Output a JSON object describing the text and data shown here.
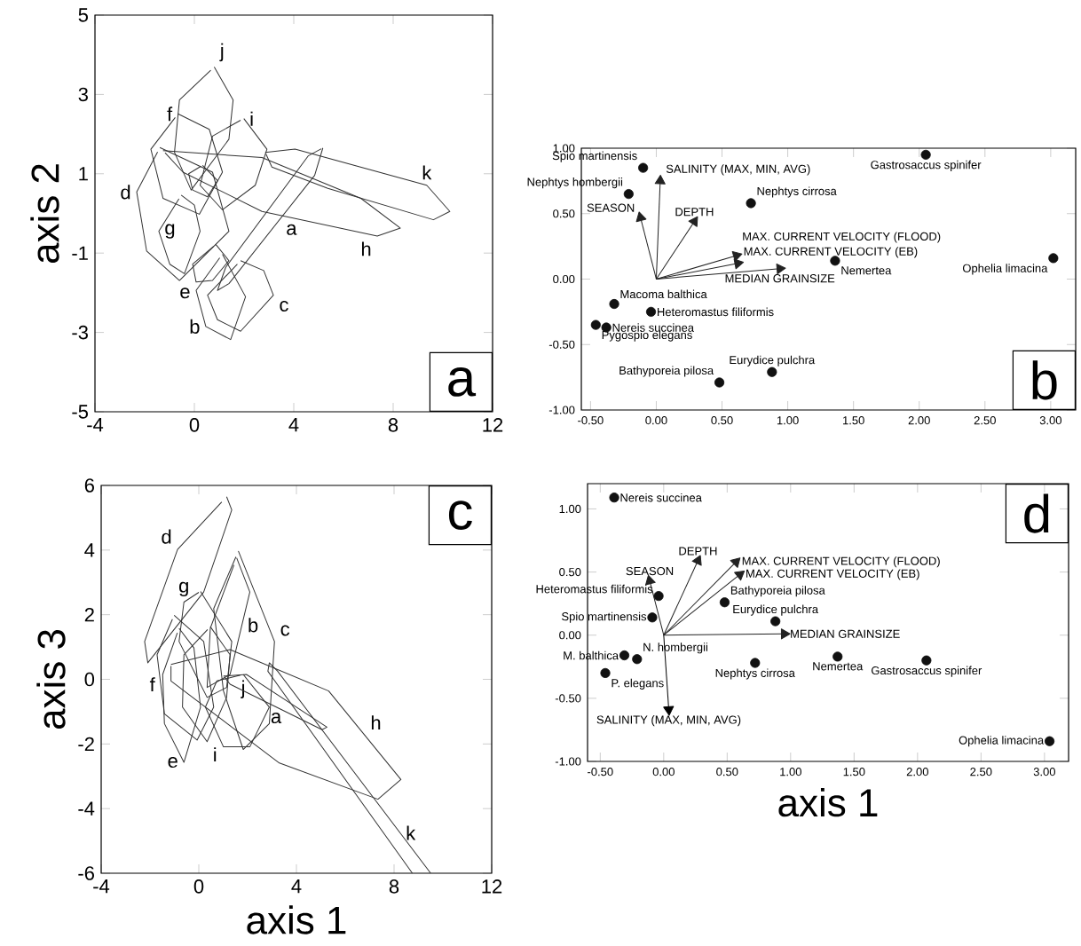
{
  "chart_data": [
    {
      "type": "line",
      "ylabel": "axis 2",
      "xlim": [
        -4,
        12
      ],
      "ylim": [
        -5,
        5
      ],
      "xticks": [
        -4,
        0,
        4,
        8,
        12
      ],
      "yticks": [
        -5,
        -3,
        -1,
        1,
        3,
        5
      ],
      "series": [
        {
          "name": "j",
          "color": "#333333",
          "x": [
            0.8,
            1.56,
            1.39,
            -0.13,
            -0.8,
            -0.6,
            0.66
          ],
          "values": [
            3.69,
            2.86,
            1.87,
            0.59,
            1.54,
            2.86,
            3.61
          ]
        },
        {
          "name": "f",
          "color": "#333333",
          "x": [
            -0.66,
            0.6,
            1.13,
            0.2,
            -1.26,
            -1.75,
            -0.77
          ],
          "values": [
            2.51,
            2.12,
            1.04,
            -0.02,
            0.38,
            1.62,
            2.42
          ]
        },
        {
          "name": "i",
          "color": "#333333",
          "x": [
            1.99,
            2.92,
            2.45,
            1.13,
            0.23,
            0.73,
            1.86
          ],
          "values": [
            2.39,
            1.62,
            0.71,
            0.09,
            0.71,
            1.95,
            2.35
          ]
        },
        {
          "color": "#333333",
          "x": [
            0.33,
            0.93,
            0.53,
            -0.07,
            -0.23,
            0.27
          ],
          "values": [
            1.21,
            0.83,
            0.42,
            0.59,
            1.0,
            1.19
          ]
        },
        {
          "name": "d",
          "color": "#333333",
          "x": [
            -1.39,
            0.73,
            1.39,
            -0.6,
            -1.92,
            -2.32,
            -1.48
          ],
          "values": [
            1.66,
            1.04,
            -0.45,
            -1.69,
            -0.95,
            0.54,
            1.55
          ]
        },
        {
          "name": "g",
          "color": "#333333",
          "x": [
            -0.53,
            0.0,
            0.23,
            -0.4,
            -0.99,
            -1.43,
            -0.62
          ],
          "values": [
            0.46,
            0.21,
            -0.45,
            -1.52,
            -1.28,
            -0.45,
            0.37
          ]
        },
        {
          "name": "e",
          "color": "#333333",
          "x": [
            0.86,
            1.39,
            0.73,
            0.07,
            -0.07,
            0.77
          ],
          "values": [
            -0.78,
            -1.19,
            -1.69,
            -1.73,
            -1.28,
            -0.83
          ]
        },
        {
          "name": "b",
          "color": "#333333",
          "x": [
            1.13,
            2.06,
            1.46,
            0.46,
            0.07,
            1.02
          ],
          "values": [
            -1.03,
            -2.1,
            -3.18,
            -2.85,
            -1.94,
            -1.12
          ]
        },
        {
          "name": "c",
          "color": "#333333",
          "x": [
            1.86,
            2.79,
            3.18,
            1.86,
            0.93,
            0.53,
            1.73
          ],
          "values": [
            -1.19,
            -1.44,
            -2.06,
            -2.97,
            -2.68,
            -2.06,
            -1.28
          ]
        },
        {
          "name": "a",
          "color": "#333333",
          "x": [
            5.17,
            4.84,
            1.39,
            0.93,
            1.26,
            4.58,
            5.11
          ],
          "values": [
            1.65,
            0.96,
            -1.77,
            -1.94,
            -1.36,
            1.45,
            1.63
          ]
        },
        {
          "name": "h",
          "color": "#333333",
          "x": [
            -1.26,
            2.72,
            6.7,
            8.29,
            7.36,
            2.72,
            -0.46,
            -1.18
          ],
          "values": [
            1.58,
            1.41,
            0.38,
            -0.37,
            -0.57,
            0.05,
            1.04,
            1.53
          ]
        },
        {
          "name": "k",
          "color": "#333333",
          "x": [
            2.85,
            4.05,
            9.35,
            10.28,
            9.62,
            5.37,
            3.12,
            2.88
          ],
          "values": [
            1.54,
            1.62,
            0.71,
            0.05,
            -0.16,
            0.63,
            1.17,
            1.5
          ]
        }
      ],
      "annotations": [
        "a"
      ]
    },
    {
      "type": "scatter",
      "xlim": [
        -0.57,
        3.19
      ],
      "ylim": [
        -1,
        1
      ],
      "xticks": [
        {
          "value": -0.5,
          "label": "-0.50"
        },
        {
          "value": 0,
          "label": "0.00"
        },
        {
          "value": 0.5,
          "label": "0.50"
        },
        {
          "value": 1,
          "label": "1.00"
        },
        {
          "value": 1.5,
          "label": "1.50"
        },
        {
          "value": 2,
          "label": "2.00"
        },
        {
          "value": 2.5,
          "label": "2.50"
        },
        {
          "value": 3,
          "label": "3.00"
        }
      ],
      "yticks": [
        {
          "value": -1,
          "label": "-1.00"
        },
        {
          "value": -0.5,
          "label": "-0.50"
        },
        {
          "value": 0,
          "label": "0.00"
        },
        {
          "value": 0.5,
          "label": "0.50"
        },
        {
          "value": 1,
          "label": "1.00"
        }
      ],
      "series": [
        {
          "type": "scatter",
          "marker": "circle",
          "color": "#111111",
          "x": [
            -0.1,
            -0.21,
            0.72,
            2.05,
            3.02,
            1.36,
            -0.32,
            -0.04,
            -0.46,
            -0.38,
            0.48,
            0.88
          ],
          "values": [
            0.85,
            0.65,
            0.58,
            0.95,
            0.16,
            0.14,
            -0.19,
            -0.25,
            -0.35,
            -0.37,
            -0.79,
            -0.71
          ]
        },
        {
          "type": "line",
          "marker": "triangle",
          "color": "#222222",
          "x": [
            0,
            0.03
          ],
          "values": [
            0,
            0.75
          ]
        },
        {
          "type": "line",
          "marker": "triangle",
          "color": "#222222",
          "x": [
            0,
            -0.12
          ],
          "values": [
            0,
            0.47
          ]
        },
        {
          "type": "line",
          "marker": "triangle",
          "color": "#222222",
          "x": [
            0,
            0.29
          ],
          "values": [
            0,
            0.44
          ]
        },
        {
          "type": "line",
          "marker": "triangle",
          "color": "#222222",
          "x": [
            0,
            0.61
          ],
          "values": [
            0,
            0.18
          ]
        },
        {
          "type": "line",
          "marker": "triangle",
          "color": "#222222",
          "x": [
            0,
            0.62
          ],
          "values": [
            0,
            0.12
          ]
        },
        {
          "type": "line",
          "marker": "triangle",
          "color": "#222222",
          "x": [
            0,
            0.94
          ],
          "values": [
            0,
            0.08
          ]
        }
      ],
      "annotations": [
        {
          "text": "Spio martinensis",
          "x": -0.1,
          "y": 0.85
        },
        {
          "text": "Nephtys hombergii",
          "x": -0.21,
          "y": 0.65
        },
        {
          "text": "SALINITY (MAX, MIN, AVG)",
          "x": 0.03,
          "y": 0.75
        },
        {
          "text": "SEASON",
          "x": -0.12,
          "y": 0.47
        },
        {
          "text": "DEPTH",
          "x": 0.29,
          "y": 0.44
        },
        {
          "text": "Nephtys cirrosa",
          "x": 0.72,
          "y": 0.58
        },
        {
          "text": "Gastrosaccus spinifer",
          "x": 2.05,
          "y": 0.95
        },
        {
          "text": "MAX. CURRENT VELOCITY (FLOOD)",
          "x": 0.61,
          "y": 0.18
        },
        {
          "text": "MAX. CURRENT VELOCITY (EB)",
          "x": 0.62,
          "y": 0.12
        },
        {
          "text": "Nemertea",
          "x": 1.36,
          "y": 0.14
        },
        {
          "text": "Ophelia limacina",
          "x": 3.02,
          "y": 0.16
        },
        {
          "text": "MEDIAN GRAINSIZE",
          "x": 0.94,
          "y": 0.08
        },
        {
          "text": "Macoma balthica",
          "x": -0.32,
          "y": -0.19
        },
        {
          "text": "Heteromastus filiformis",
          "x": -0.04,
          "y": -0.25
        },
        {
          "text": "Nereis succinea",
          "x": -0.38,
          "y": -0.37
        },
        {
          "text": "Pygospio elegans",
          "x": -0.46,
          "y": -0.35
        },
        {
          "text": "Eurydice pulchra",
          "x": 0.88,
          "y": -0.71
        },
        {
          "text": "Bathyporeia pilosa",
          "x": 0.48,
          "y": -0.79
        },
        "b"
      ]
    },
    {
      "type": "line",
      "xlabel": "axis 1",
      "ylabel": "axis 3",
      "xlim": [
        -4,
        12
      ],
      "ylim": [
        -6,
        6
      ],
      "xticks": [
        -4,
        0,
        4,
        8,
        12
      ],
      "yticks": [
        -6,
        -4,
        -2,
        0,
        2,
        4,
        6
      ],
      "series": [
        {
          "name": "d",
          "color": "#333333",
          "x": [
            1.14,
            1.35,
            0.2,
            -2.09,
            -2.22,
            -0.87,
            0.94
          ],
          "values": [
            5.65,
            5.24,
            2.7,
            0.51,
            1.17,
            4.02,
            5.49
          ]
        },
        {
          "name": "c",
          "color": "#333333",
          "x": [
            1.62,
            3.1,
            2.89,
            1.82,
            1.01,
            0.61,
            1.52
          ],
          "values": [
            3.97,
            1.17,
            -1.37,
            -2.17,
            -0.36,
            2.19,
            3.79
          ]
        },
        {
          "name": "b",
          "color": "#333333",
          "x": [
            1.55,
            2.09,
            1.28,
            0.34,
            0.47,
            1.44
          ],
          "values": [
            3.76,
            2.7,
            0.15,
            -0.25,
            1.58,
            3.54
          ]
        },
        {
          "name": "g",
          "color": "#333333",
          "x": [
            0.07,
            1.35,
            1.14,
            0.34,
            -0.81,
            -0.61,
            0.0
          ],
          "values": [
            2.72,
            1.17,
            -0.25,
            -0.56,
            1.17,
            2.39,
            2.69
          ]
        },
        {
          "name": "f",
          "color": "#333333",
          "x": [
            -1.01,
            0.2,
            0.61,
            -0.07,
            -1.41,
            -1.71,
            -1.08
          ],
          "values": [
            1.98,
            1.17,
            -0.86,
            -1.88,
            -1.07,
            0.76,
            1.86
          ]
        },
        {
          "name": "e",
          "color": "#333333",
          "x": [
            -0.81,
            -0.2,
            0.07,
            -0.61,
            -1.41,
            -1.48,
            -0.88
          ],
          "values": [
            1.58,
            0.97,
            -0.86,
            -2.57,
            -1.37,
            0.15,
            1.44
          ]
        },
        {
          "name": "i",
          "color": "#333333",
          "x": [
            0.47,
            1.28,
            1.14,
            0.34,
            -0.67,
            -0.61,
            0.36
          ],
          "values": [
            1.63,
            0.76,
            -0.56,
            -1.93,
            -0.86,
            0.76,
            1.54
          ]
        },
        {
          "name": "j",
          "color": "#333333",
          "x": [
            1.82,
            2.89,
            2.09,
            1.01,
            0.27,
            0.74,
            1.71
          ],
          "values": [
            0.15,
            -0.86,
            -2.09,
            -2.09,
            -0.86,
            -0.05,
            0.13
          ]
        },
        {
          "name": "h",
          "color": "#333333",
          "x": [
            -1.14,
            1.28,
            5.32,
            8.28,
            7.34,
            3.3,
            -1.14,
            -1.14
          ],
          "values": [
            0.46,
            0.92,
            -0.36,
            -3.1,
            -3.71,
            -2.59,
            -0.05,
            0.41
          ]
        },
        {
          "name": "a",
          "color": "#333333",
          "x": [
            1.01,
            1.95,
            5.25,
            5.05,
            1.28,
            1.04
          ],
          "values": [
            0.1,
            0.15,
            -1.48,
            -1.56,
            -0.15,
            0.08
          ]
        },
        {
          "name": "k",
          "color": "#333333",
          "x": [
            8.75,
            2.83,
            2.89,
            3.23,
            9.5
          ],
          "values": [
            -6,
            0.25,
            0.51,
            0.25,
            -6
          ]
        }
      ],
      "annotations": [
        "c"
      ]
    },
    {
      "type": "scatter",
      "xlabel": "axis 1",
      "xlim": [
        -0.6,
        3.19
      ],
      "ylim": [
        -1,
        1.2
      ],
      "xticks": [
        {
          "value": -0.5,
          "label": "-0.50"
        },
        {
          "value": 0,
          "label": "0.00"
        },
        {
          "value": 0.5,
          "label": "0.50"
        },
        {
          "value": 1,
          "label": "1.00"
        },
        {
          "value": 1.5,
          "label": "1.50"
        },
        {
          "value": 2,
          "label": "2.00"
        },
        {
          "value": 2.5,
          "label": "2.50"
        },
        {
          "value": 3,
          "label": "3.00"
        }
      ],
      "yticks": [
        {
          "value": -1,
          "label": "-1.00"
        },
        {
          "value": -0.5,
          "label": "-0.50"
        },
        {
          "value": 0,
          "label": "0.00"
        },
        {
          "value": 0.5,
          "label": "0.50"
        },
        {
          "value": 1,
          "label": "1.00"
        }
      ],
      "series": [
        {
          "type": "scatter",
          "marker": "circle",
          "color": "#111111",
          "x": [
            -0.39,
            -0.04,
            -0.09,
            0.48,
            0.88,
            -0.31,
            -0.21,
            -0.46,
            0.72,
            1.37,
            2.07,
            3.04
          ],
          "values": [
            1.09,
            0.31,
            0.14,
            0.26,
            0.11,
            -0.16,
            -0.19,
            -0.3,
            -0.22,
            -0.17,
            -0.2,
            -0.84
          ]
        },
        {
          "type": "line",
          "marker": "triangle",
          "color": "#222222",
          "x": [
            0,
            0.27
          ],
          "values": [
            0,
            0.59
          ]
        },
        {
          "type": "line",
          "marker": "triangle",
          "color": "#222222",
          "x": [
            0,
            0.57
          ],
          "values": [
            0,
            0.58
          ]
        },
        {
          "type": "line",
          "marker": "triangle",
          "color": "#222222",
          "x": [
            0,
            0.6
          ],
          "values": [
            0,
            0.48
          ]
        },
        {
          "type": "line",
          "marker": "triangle",
          "color": "#222222",
          "x": [
            0,
            -0.11
          ],
          "values": [
            0,
            0.43
          ]
        },
        {
          "type": "line",
          "marker": "triangle",
          "color": "#222222",
          "x": [
            0,
            0.95
          ],
          "values": [
            0,
            0.01
          ]
        },
        {
          "type": "line",
          "marker": "triangle",
          "color": "#000000",
          "x": [
            0,
            0.04
          ],
          "values": [
            0,
            -0.59
          ]
        }
      ],
      "annotations": [
        {
          "text": "Nereis succinea",
          "x": -0.39,
          "y": 1.09
        },
        {
          "text": "DEPTH",
          "x": 0.27,
          "y": 0.59
        },
        {
          "text": "MAX. CURRENT VELOCITY (FLOOD)",
          "x": 0.57,
          "y": 0.58
        },
        {
          "text": "MAX. CURRENT VELOCITY (EB)",
          "x": 0.6,
          "y": 0.48
        },
        {
          "text": "SEASON",
          "x": -0.11,
          "y": 0.43
        },
        {
          "text": "Heteromastus filiformis",
          "x": -0.04,
          "y": 0.31
        },
        {
          "text": "Bathyporeia pilosa",
          "x": 0.48,
          "y": 0.26
        },
        {
          "text": "Spio martinensis",
          "x": -0.09,
          "y": 0.14
        },
        {
          "text": "Eurydice pulchra",
          "x": 0.88,
          "y": 0.11
        },
        {
          "text": "MEDIAN GRAINSIZE",
          "x": 0.95,
          "y": 0.01
        },
        {
          "text": "M. balthica",
          "x": -0.31,
          "y": -0.16
        },
        {
          "text": "N. hombergii",
          "x": -0.21,
          "y": -0.19
        },
        {
          "text": "Nephtys cirrosa",
          "x": 0.72,
          "y": -0.22
        },
        {
          "text": "Nemertea",
          "x": 1.37,
          "y": -0.17
        },
        {
          "text": "Gastrosaccus spinifer",
          "x": 2.07,
          "y": -0.2
        },
        {
          "text": "P. elegans",
          "x": -0.46,
          "y": -0.3
        },
        {
          "text": "SALINITY (MAX, MIN, AVG)",
          "x": 0.04,
          "y": -0.59
        },
        {
          "text": "Ophelia limacina",
          "x": 3.04,
          "y": -0.84
        },
        "d"
      ]
    }
  ]
}
